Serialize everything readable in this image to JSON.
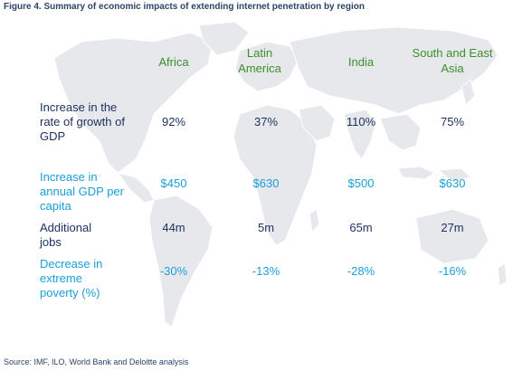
{
  "title": "Figure 4. Summary of economic impacts of extending internet penetration by region",
  "regions": [
    "Africa",
    "Latin America",
    "India",
    "South and East Asia"
  ],
  "rows": [
    {
      "label": "Increase in the rate of growth of GDP",
      "values": [
        "92%",
        "37%",
        "110%",
        "75%"
      ],
      "color": "#1c2f5e"
    },
    {
      "label": "Increase in annual GDP per capita",
      "values": [
        "$450",
        "$630",
        "$500",
        "$630"
      ],
      "color": "#1aa0d8"
    },
    {
      "label": "Additional jobs",
      "values": [
        "44m",
        "5m",
        "65m",
        "27m"
      ],
      "color": "#1c2f5e"
    },
    {
      "label": "Decrease in extreme poverty (%)",
      "values": [
        "-30%",
        "-13%",
        "-28%",
        "-16%"
      ],
      "color": "#1aa0d8"
    }
  ],
  "source": "Source: IMF, ILO, World Bank and Deloitte analysis",
  "colors": {
    "heading_green": "#3e8e2a",
    "dark_blue": "#1c2f5e",
    "light_blue": "#1aa0d8",
    "map_fill": "#e6e8ec"
  }
}
